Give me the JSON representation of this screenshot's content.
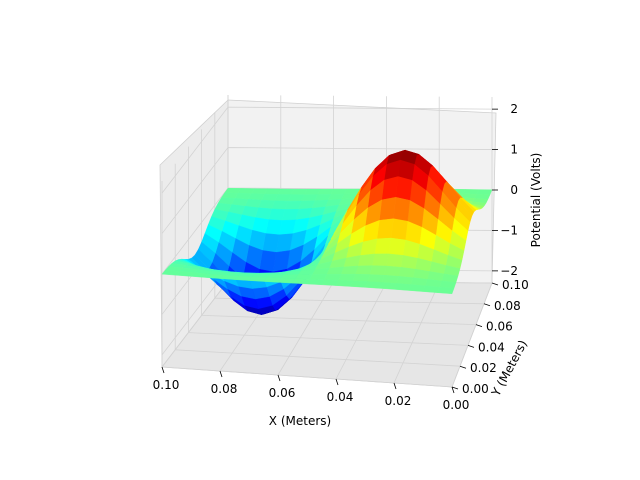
{
  "chart_data": {
    "type": "surface3d",
    "colormap": "jet",
    "xlabel": "X (Meters)",
    "ylabel": "Y (Meters)",
    "zlabel": "Potential (Volts)",
    "xlim": [
      0.0,
      0.1
    ],
    "ylim": [
      0.0,
      0.1
    ],
    "zlim": [
      -2.3,
      2.3
    ],
    "x_ticks": [
      "0.10",
      "0.08",
      "0.06",
      "0.04",
      "0.02",
      "0.00"
    ],
    "y_ticks": [
      "0.00",
      "0.02",
      "0.04",
      "0.06",
      "0.08",
      "0.10"
    ],
    "z_ticks": [
      "2",
      "1",
      "0",
      "−1",
      "−2"
    ],
    "grid": true,
    "surface": {
      "grid_size": 21,
      "peaks": [
        {
          "x": 0.075,
          "y": 0.05,
          "amplitude": -2.0,
          "sigma": 0.016
        },
        {
          "x": 0.025,
          "y": 0.05,
          "amplitude": 2.2,
          "sigma": 0.016
        }
      ],
      "baseline": 0.0
    }
  }
}
